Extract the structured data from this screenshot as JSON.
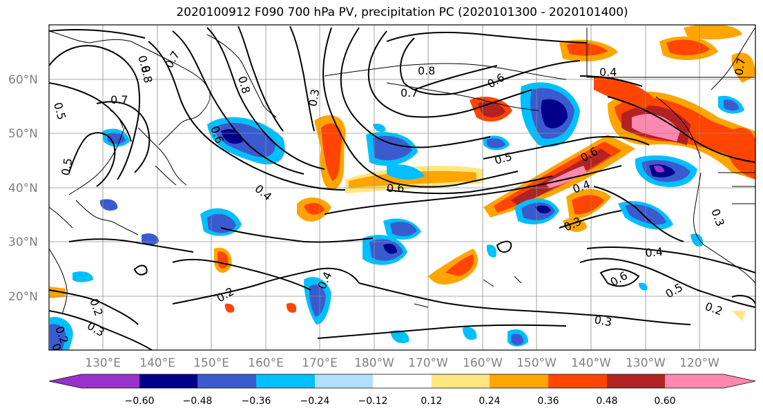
{
  "title": "2020100912 F090 700 hPa PV, precipitation PC (2020101300 - 2020101400)",
  "lon_labels": [
    "130°E",
    "140°E",
    "150°E",
    "160°E",
    "170°E",
    "180°W",
    "170°W",
    "160°W",
    "150°W",
    "140°W",
    "130°W",
    "120°W"
  ],
  "lat_labels": [
    "60°N",
    "50°N",
    "40°N",
    "30°N",
    "20°N"
  ],
  "colorbar": {
    "ticks": [
      "−0.60",
      "−0.48",
      "−0.36",
      "−0.24",
      "−0.12",
      "0.12",
      "0.24",
      "0.36",
      "0.48",
      "0.60"
    ],
    "colors": [
      "#9932CC",
      "#00008B",
      "#3A5BD0",
      "#00BFFF",
      "#B0E0FF",
      "#FFFFFF",
      "#FFE680",
      "#FFA500",
      "#FF4500",
      "#B22222",
      "#FF88B0"
    ]
  },
  "contour_labels": [
    "0.8",
    "0.7",
    "0.8",
    "0.5",
    "0.7",
    "0.8",
    "0.3",
    "0.5",
    "0.8",
    "0.7",
    "0.6",
    "0.4",
    "0.4",
    "0.7",
    "0.6",
    "0.5",
    "0.6",
    "0.6",
    "0.4",
    "0.3",
    "0.3",
    "0.4",
    "0.6",
    "0.5",
    "0.2",
    "0.2",
    "0.3",
    "0.4",
    "0.2",
    "0.3",
    "0.2",
    "0.4"
  ],
  "colors": {
    "positive": "#FF4500",
    "negative": "#00008B"
  }
}
